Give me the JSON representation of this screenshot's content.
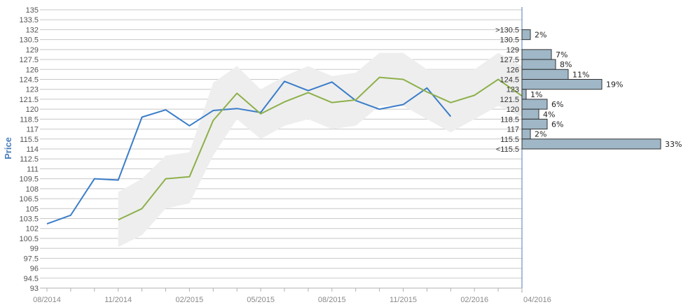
{
  "chart_data": {
    "type": "line",
    "title": "",
    "ylabel": "Price",
    "ylim": [
      93,
      135
    ],
    "yticks": [
      "93",
      "94.5",
      "96",
      "97.5",
      "99",
      "100.5",
      "102",
      "103.5",
      "105",
      "106.5",
      "108",
      "109.5",
      "111",
      "112.5",
      "114",
      "115.5",
      "117",
      "118.5",
      "120",
      "121.5",
      "123",
      "124.5",
      "126",
      "127.5",
      "129",
      "130.5",
      "132",
      "133.5",
      "135"
    ],
    "xticks": [
      "08/2014",
      "11/2014",
      "02/2015",
      "05/2015",
      "08/2015",
      "11/2015",
      "02/2016",
      "04/2016"
    ],
    "series": [
      {
        "color": "#3a7dc9",
        "x": [
          0,
          1,
          2,
          3,
          4,
          5,
          6,
          7,
          8,
          9,
          10,
          11,
          12,
          13,
          14,
          15,
          16,
          17
        ],
        "y": [
          102.7,
          104,
          109.5,
          109.3,
          118.8,
          119.9,
          117.5,
          119.8,
          120.1,
          119.5,
          124.2,
          122.8,
          124.1,
          121.3,
          120,
          120.7,
          123.2,
          118.9
        ]
      },
      {
        "color": "#8db04a",
        "x": [
          3,
          4,
          5,
          6,
          7,
          8,
          9,
          10,
          11,
          12,
          13,
          14,
          15,
          16,
          17,
          18,
          19,
          20
        ],
        "y": [
          103.3,
          105,
          109.5,
          109.8,
          118.3,
          122.4,
          119.3,
          121.1,
          122.5,
          121,
          121.4,
          124.8,
          124.5,
          122.6,
          121,
          122.1,
          124.5,
          122
        ]
      }
    ],
    "band": {
      "color": "#eeeeee",
      "x": [
        3,
        4,
        5,
        6,
        7,
        8,
        9,
        10,
        11,
        12,
        13,
        14,
        15,
        16,
        17,
        18,
        19,
        20
      ],
      "upper": [
        107.5,
        109.5,
        113,
        113.5,
        124,
        126.5,
        123,
        125,
        126.5,
        125,
        125.5,
        128.5,
        128.5,
        126,
        126,
        126,
        128.5,
        126.5
      ],
      "lower": [
        99.2,
        101,
        105,
        105.8,
        113,
        118.5,
        115.5,
        117.5,
        118.5,
        117,
        117.5,
        120.5,
        120.5,
        118.5,
        116.5,
        118.5,
        120.5,
        118.8
      ]
    },
    "histogram": {
      "color": "#9fb7c7",
      "bins": [
        {
          "label": ">130.5",
          "edge": "",
          "pct": 2,
          "pct_label": "2%"
        },
        {
          "label": "130.5",
          "edge": "",
          "pct": 0,
          "pct_label": ""
        },
        {
          "label": "129",
          "edge": "",
          "pct": 7,
          "pct_label": "7%"
        },
        {
          "label": "127.5",
          "edge": "",
          "pct": 8,
          "pct_label": "8%"
        },
        {
          "label": "126",
          "edge": "",
          "pct": 11,
          "pct_label": "11%"
        },
        {
          "label": "124.5",
          "edge": "",
          "pct": 19,
          "pct_label": "19%"
        },
        {
          "label": "123",
          "edge": "",
          "pct": 1,
          "pct_label": "1%"
        },
        {
          "label": "121.5",
          "edge": "",
          "pct": 6,
          "pct_label": "6%"
        },
        {
          "label": "120",
          "edge": "",
          "pct": 4,
          "pct_label": "4%"
        },
        {
          "label": "118.5",
          "edge": "",
          "pct": 6,
          "pct_label": "6%"
        },
        {
          "label": "117",
          "edge": "",
          "pct": 2,
          "pct_label": "2%"
        },
        {
          "label": "115.5",
          "edge": "",
          "pct": 33,
          "pct_label": "33%"
        },
        {
          "label": "<115.5",
          "edge": "",
          "pct": 0,
          "pct_label": ""
        }
      ]
    }
  }
}
